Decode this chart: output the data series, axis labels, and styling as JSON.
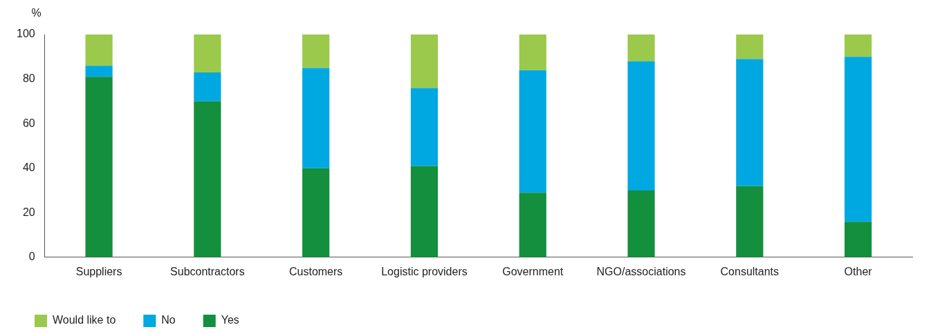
{
  "chart_data": {
    "type": "bar",
    "stacked": true,
    "ylabel": "%",
    "categories": [
      "Suppliers",
      "Subcontractors",
      "Customers",
      "Logistic providers",
      "Government",
      "NGO/associations",
      "Consultants",
      "Other"
    ],
    "series": [
      {
        "name": "Yes",
        "color": "#138f3e",
        "values": [
          81,
          70,
          40,
          41,
          29,
          30,
          32,
          16
        ]
      },
      {
        "name": "No",
        "color": "#00a8e1",
        "values": [
          5,
          13,
          45,
          35,
          55,
          58,
          57,
          74
        ]
      },
      {
        "name": "Would like to",
        "color": "#9bc94b",
        "values": [
          14,
          17,
          15,
          24,
          16,
          12,
          11,
          10
        ]
      }
    ],
    "ylim": [
      0,
      100
    ],
    "yticks": [
      0,
      20,
      40,
      60,
      80,
      100
    ],
    "grid": false,
    "legend": "bottom left"
  }
}
